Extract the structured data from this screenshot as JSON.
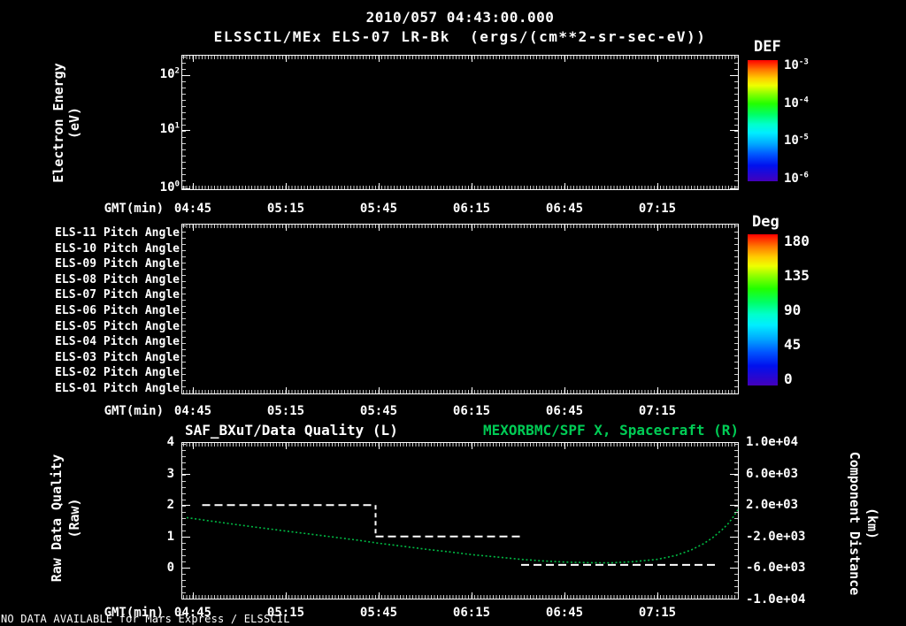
{
  "header": {
    "title": "2010/057 04:43:00.000",
    "subtitle": "ELSSCIL/MEx ELS-07 LR-Bk  (ergs/(cm**2-sr-sec-eV))"
  },
  "time_axis": {
    "label": "GMT(min)",
    "ticks": [
      "04:45",
      "05:15",
      "05:45",
      "06:15",
      "06:45",
      "07:15"
    ]
  },
  "top_panel": {
    "ylabel": [
      "Electron Energy",
      "(eV)"
    ],
    "yticks": [
      {
        "base": "10",
        "exp": "2"
      },
      {
        "base": "10",
        "exp": "1"
      },
      {
        "base": "10",
        "exp": "0"
      }
    ],
    "colorbar": {
      "title": "DEF",
      "ticks": [
        {
          "base": "10",
          "exp": "-3"
        },
        {
          "base": "10",
          "exp": "-4"
        },
        {
          "base": "10",
          "exp": "-5"
        },
        {
          "base": "10",
          "exp": "-6"
        }
      ]
    }
  },
  "middle_panel": {
    "row_labels": [
      "ELS-11 Pitch Angle",
      "ELS-10 Pitch Angle",
      "ELS-09 Pitch Angle",
      "ELS-08 Pitch Angle",
      "ELS-07 Pitch Angle",
      "ELS-06 Pitch Angle",
      "ELS-05 Pitch Angle",
      "ELS-04 Pitch Angle",
      "ELS-03 Pitch Angle",
      "ELS-02 Pitch Angle",
      "ELS-01 Pitch Angle"
    ],
    "colorbar": {
      "title": "Deg",
      "ticks": [
        "180",
        "135",
        "90",
        "45",
        "0"
      ]
    }
  },
  "bottom_panel": {
    "title_left": "SAF_BXuT/Data Quality (L)",
    "title_right": "MEXORBMC/SPF X, Spacecraft (R)",
    "left_axis": {
      "label": [
        "Raw Data Quality",
        "(Raw)"
      ],
      "ticks": [
        "4",
        "3",
        "2",
        "1",
        "0"
      ]
    },
    "right_axis": {
      "label": [
        "Component Distance",
        "(km)"
      ],
      "ticks": [
        "1.0e+04",
        "6.0e+03",
        "2.0e+03",
        "-2.0e+03",
        "-6.0e+03",
        "-1.0e+04"
      ]
    }
  },
  "footer": {
    "message": "NO DATA AVAILABLE for Mars Express / ELSSCIL"
  },
  "colors": {
    "background": "#000000",
    "axis_text": "#ffffff",
    "series_green": "#00cc55"
  },
  "chart_data": [
    {
      "type": "heatmap",
      "title": "ELSSCIL/MEx ELS-07 LR-Bk",
      "units": "ergs/(cm**2-sr-sec-eV)",
      "ylabel": "Electron Energy (eV)",
      "yscale": "log",
      "yticks": [
        "10^0",
        "10^1",
        "10^2"
      ],
      "xlabel": "GMT(min)",
      "xticks": [
        "04:45",
        "05:15",
        "05:45",
        "06:15",
        "06:45",
        "07:15"
      ],
      "colorbar": {
        "label": "DEF",
        "scale": "log",
        "ticks": [
          "10^-3",
          "10^-4",
          "10^-5",
          "10^-6"
        ]
      },
      "data": "empty - no data available"
    },
    {
      "type": "heatmap",
      "rows": [
        "ELS-11",
        "ELS-10",
        "ELS-09",
        "ELS-08",
        "ELS-07",
        "ELS-06",
        "ELS-05",
        "ELS-04",
        "ELS-03",
        "ELS-02",
        "ELS-01"
      ],
      "row_quantity": "Pitch Angle",
      "xlabel": "GMT(min)",
      "xticks": [
        "04:45",
        "05:15",
        "05:45",
        "06:15",
        "06:45",
        "07:15"
      ],
      "colorbar": {
        "label": "Deg",
        "ticks": [
          180,
          135,
          90,
          45,
          0
        ]
      },
      "data": "empty - no data available"
    },
    {
      "type": "line",
      "title_left": "SAF_BXuT/Data Quality (L)",
      "title_right": "MEXORBMC/SPF X, Spacecraft (R)",
      "x_start_time": "04:43",
      "x_range_minutes": [
        0,
        180
      ],
      "xticks": [
        "04:45",
        "05:15",
        "05:45",
        "06:15",
        "06:45",
        "07:15"
      ],
      "xtick_minutes": [
        2,
        32,
        62,
        92,
        122,
        152
      ],
      "left_axis": {
        "label": "Raw Data Quality (Raw)",
        "lim": [
          -1,
          4
        ],
        "ticks": [
          4,
          3,
          2,
          1,
          0
        ]
      },
      "right_axis": {
        "label": "Component Distance (km)",
        "lim": [
          -10000,
          10000
        ],
        "ticks": [
          10000,
          6000,
          2000,
          -2000,
          -6000,
          -10000
        ]
      },
      "series": [
        {
          "name": "SAF_BXuT/Data Quality",
          "axis": "left",
          "style": "dashed",
          "color": "#ffffff",
          "segments": [
            {
              "t_start": 5,
              "t_end": 61,
              "value": 2
            },
            {
              "t_start": 61,
              "t_end": 108,
              "value": 1
            },
            {
              "t_start": 108,
              "t_end": 172,
              "value": 0.1
            }
          ],
          "step_connectors": [
            {
              "t": 61,
              "from": 2,
              "to": 1
            }
          ]
        },
        {
          "name": "MEXORBMC/SPF X Spacecraft",
          "axis": "right",
          "style": "dotted",
          "color": "#00bb44",
          "points": [
            [
              0,
              400
            ],
            [
              8,
              -50
            ],
            [
              16,
              -480
            ],
            [
              24,
              -900
            ],
            [
              32,
              -1300
            ],
            [
              40,
              -1700
            ],
            [
              48,
              -2100
            ],
            [
              56,
              -2500
            ],
            [
              62,
              -2850
            ],
            [
              70,
              -3250
            ],
            [
              78,
              -3650
            ],
            [
              85,
              -3950
            ],
            [
              92,
              -4300
            ],
            [
              100,
              -4600
            ],
            [
              108,
              -4900
            ],
            [
              115,
              -5100
            ],
            [
              122,
              -5250
            ],
            [
              130,
              -5330
            ],
            [
              137,
              -5350
            ],
            [
              144,
              -5200
            ],
            [
              152,
              -4900
            ],
            [
              158,
              -4400
            ],
            [
              163,
              -3700
            ],
            [
              167,
              -2900
            ],
            [
              170,
              -2100
            ],
            [
              173,
              -1100
            ],
            [
              175,
              -300
            ],
            [
              176.5,
              500
            ],
            [
              178,
              1400
            ]
          ]
        }
      ]
    }
  ]
}
